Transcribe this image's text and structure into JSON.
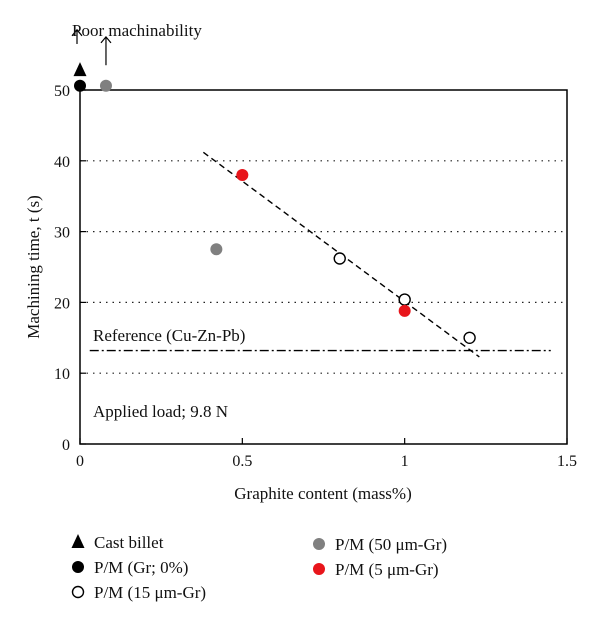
{
  "chart_data": {
    "type": "scatter",
    "xlabel": "Graphite content (mass%)",
    "ylabel": "Machining time, t (s)",
    "xlim": [
      0,
      1.5
    ],
    "ylim": [
      0,
      50
    ],
    "x_ticks": [
      "0",
      "0.5",
      "1",
      "1.5"
    ],
    "y_ticks": [
      "0",
      "10",
      "20",
      "30",
      "40",
      "50"
    ],
    "grid": "horizontal dotted at 10, 20, 30, 40",
    "annotations": {
      "poor_machinability": "Poor machinability",
      "reference": "Reference (Cu-Zn-Pb)",
      "applied_load": "Applied load; 9.8 N"
    },
    "reference_line": {
      "y": 13.2,
      "style": "dash-dot"
    },
    "trend_line": {
      "x": [
        0.38,
        1.23
      ],
      "y": [
        41.2,
        12.3
      ],
      "style": "dashed"
    },
    "series": [
      {
        "name": "Cast billet",
        "marker": "filled-triangle",
        "color": "#000000",
        "x": [
          0
        ],
        "y": [
          52.8
        ],
        "off_scale": true
      },
      {
        "name": "P/M (Gr; 0%)",
        "marker": "filled-circle",
        "color": "#000000",
        "x": [
          0
        ],
        "y": [
          50.6
        ],
        "off_scale": true
      },
      {
        "name": "P/M (15 μm-Gr)",
        "marker": "open-circle",
        "color": "#000000",
        "x": [
          0.8,
          1.0,
          1.2
        ],
        "y": [
          26.2,
          20.4,
          15.0
        ]
      },
      {
        "name": "P/M (50 μm-Gr)",
        "marker": "filled-circle",
        "color": "#808080",
        "x": [
          0.08,
          0.42
        ],
        "y": [
          50.6,
          27.5
        ],
        "off_scale": [
          true,
          false
        ]
      },
      {
        "name": "P/M (5 μm-Gr)",
        "marker": "filled-circle",
        "color": "#e8151b",
        "x": [
          0.5,
          1.0
        ],
        "y": [
          38.0,
          18.8
        ]
      }
    ]
  }
}
